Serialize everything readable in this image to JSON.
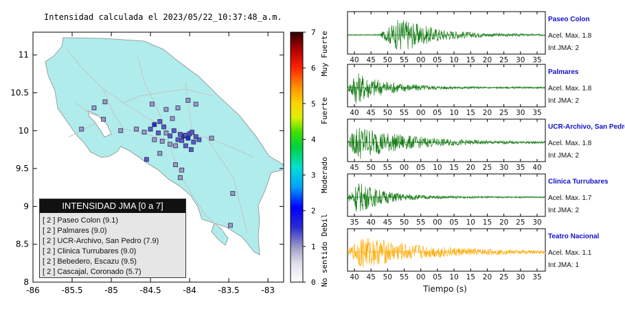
{
  "map": {
    "title": "Intensidad calculada el 2023/05/22_10:37:48_a.m.",
    "x_ticks": [
      "-86",
      "-85.5",
      "-85",
      "-84.5",
      "-84",
      "-83.5",
      "-83"
    ],
    "y_ticks": [
      "11",
      "10.5",
      "10",
      "9.5",
      "9",
      "8.5",
      "8"
    ]
  },
  "colorbar": {
    "ticks": [
      "7",
      "6",
      "5",
      "4",
      "3",
      "2",
      "1",
      "0"
    ],
    "category_labels": [
      "Muy Fuerte",
      "Fuerte",
      "Moderado",
      "Debil",
      "No sentido"
    ]
  },
  "legend": {
    "header": "INTENSIDAD JMA [0 a 7]",
    "items": [
      "[ 2 ]  Paseo Colon (9.1)",
      "[ 2 ]  Palmares (9.0)",
      "[ 2 ]  UCR-Archivo, San Pedro (7.9)",
      "[ 2 ]  Clinica Turrubares (9.0)",
      "[ 2 ]  Bebedero, Escazu (9.5)",
      "[ 2 ]  Cascajal, Coronado (5.7)"
    ]
  },
  "colors": {
    "land": "#b0ecec",
    "station_stroke": "#2a2a4a",
    "trace_green": "#137a13",
    "trace_orange": "#ffaa00",
    "station_title": "#1010cc"
  },
  "traces": [
    {
      "name": "Paseo Colon",
      "accel_label": "Acel. Max. 1.8",
      "int_label": "Int JMA: 2",
      "ticks": [
        "40",
        "45",
        "50",
        "55",
        "00",
        "05",
        "10",
        "15",
        "20",
        "25",
        "30",
        "35"
      ],
      "color": "trace_green",
      "onset": 0.16,
      "peak": 0.26,
      "amp": 0.95,
      "decay": 6
    },
    {
      "name": "Palmares",
      "accel_label": "Acel. Max. 1.8",
      "int_label": "Int JMA: 2",
      "ticks": [
        "40",
        "45",
        "50",
        "55",
        "00",
        "05",
        "10",
        "15",
        "20",
        "25",
        "30",
        "35"
      ],
      "color": "trace_green",
      "onset": 0.0,
      "peak": 0.02,
      "amp": 0.9,
      "decay": 6
    },
    {
      "name": "UCR-Archivo, San Pedro",
      "accel_label": "Acel. Max. 1.8",
      "int_label": "Int JMA: 2",
      "ticks": [
        "45",
        "50",
        "55",
        "00",
        "05",
        "10",
        "15",
        "20",
        "25",
        "30",
        "35",
        "40"
      ],
      "color": "trace_green",
      "onset": 0.0,
      "peak": 0.03,
      "amp": 0.95,
      "decay": 4
    },
    {
      "name": "Clinica Turrubares",
      "accel_label": "Acel. Max. 1.7",
      "int_label": "Int JMA: 2",
      "ticks": [
        "35",
        "40",
        "45",
        "50",
        "55",
        "00",
        "05",
        "10",
        "15",
        "20",
        "25",
        "30"
      ],
      "color": "trace_green",
      "onset": 0.0,
      "peak": 0.03,
      "amp": 0.9,
      "decay": 7
    },
    {
      "name": "Teatro Nacional",
      "accel_label": "Acel. Max. 1.1",
      "int_label": "Int JMA: 1",
      "ticks": [
        "40",
        "45",
        "50",
        "55",
        "00",
        "05",
        "10",
        "15",
        "20",
        "25",
        "30",
        "35"
      ],
      "color": "trace_orange",
      "onset": 0.0,
      "peak": 0.05,
      "amp": 0.85,
      "decay": 3
    }
  ],
  "x_axis_label": "Tiempo (s)",
  "chart_data": [
    {
      "type": "scatter",
      "title": "Intensidad calculada el 2023/05/22_10:37:48_a.m.",
      "xlim": [
        -86,
        -82.8
      ],
      "ylim": [
        8,
        11.3
      ],
      "x_ticks": [
        -86,
        -85.5,
        -85,
        -84.5,
        -84,
        -83.5,
        -83
      ],
      "y_ticks": [
        8,
        8.5,
        9,
        9.5,
        10,
        10.5,
        11
      ],
      "colorbar": {
        "min": 0,
        "max": 7,
        "labels": [
          "No sentido",
          "Debil",
          "Moderado",
          "Fuerte",
          "Muy Fuerte"
        ]
      },
      "stations": [
        {
          "x": -84.08,
          "y": 9.93,
          "v": 2.0
        },
        {
          "x": -84.05,
          "y": 9.94,
          "v": 1.9
        },
        {
          "x": -84.12,
          "y": 9.95,
          "v": 1.8
        },
        {
          "x": -84.02,
          "y": 9.9,
          "v": 2.0
        },
        {
          "x": -84.0,
          "y": 9.96,
          "v": 1.9
        },
        {
          "x": -84.15,
          "y": 9.88,
          "v": 1.7
        },
        {
          "x": -84.1,
          "y": 9.87,
          "v": 1.8
        },
        {
          "x": -83.97,
          "y": 9.98,
          "v": 1.9
        },
        {
          "x": -83.95,
          "y": 9.85,
          "v": 1.8
        },
        {
          "x": -83.92,
          "y": 9.92,
          "v": 1.6
        },
        {
          "x": -84.2,
          "y": 10.0,
          "v": 1.5
        },
        {
          "x": -84.25,
          "y": 9.93,
          "v": 1.6
        },
        {
          "x": -84.3,
          "y": 9.97,
          "v": 1.4
        },
        {
          "x": -84.33,
          "y": 10.05,
          "v": 1.5
        },
        {
          "x": -84.45,
          "y": 10.08,
          "v": 2.2
        },
        {
          "x": -84.4,
          "y": 9.97,
          "v": 1.9
        },
        {
          "x": -84.5,
          "y": 10.02,
          "v": 1.8
        },
        {
          "x": -84.38,
          "y": 10.12,
          "v": 1.5
        },
        {
          "x": -84.22,
          "y": 10.16,
          "v": 1.3
        },
        {
          "x": -84.3,
          "y": 10.28,
          "v": 1.2
        },
        {
          "x": -84.15,
          "y": 10.3,
          "v": 1.1
        },
        {
          "x": -84.48,
          "y": 10.35,
          "v": 1.0
        },
        {
          "x": -84.02,
          "y": 10.4,
          "v": 1.0
        },
        {
          "x": -83.92,
          "y": 10.35,
          "v": 1.0
        },
        {
          "x": -84.18,
          "y": 9.8,
          "v": 1.4
        },
        {
          "x": -84.05,
          "y": 9.8,
          "v": 1.5
        },
        {
          "x": -83.88,
          "y": 9.88,
          "v": 1.7
        },
        {
          "x": -83.98,
          "y": 9.75,
          "v": 1.5
        },
        {
          "x": -84.25,
          "y": 9.82,
          "v": 1.3
        },
        {
          "x": -84.35,
          "y": 9.86,
          "v": 1.2
        },
        {
          "x": -84.45,
          "y": 9.88,
          "v": 1.1
        },
        {
          "x": -84.58,
          "y": 9.98,
          "v": 1.1
        },
        {
          "x": -84.68,
          "y": 10.02,
          "v": 1.0
        },
        {
          "x": -84.38,
          "y": 9.7,
          "v": 1.0
        },
        {
          "x": -84.55,
          "y": 9.62,
          "v": 1.9
        },
        {
          "x": -84.18,
          "y": 9.55,
          "v": 1.0
        },
        {
          "x": -84.1,
          "y": 9.48,
          "v": 1.0
        },
        {
          "x": -83.72,
          "y": 9.9,
          "v": 1.0
        },
        {
          "x": -84.12,
          "y": 9.38,
          "v": 1.0
        },
        {
          "x": -85.08,
          "y": 10.38,
          "v": 1.0
        },
        {
          "x": -85.22,
          "y": 10.3,
          "v": 1.0
        },
        {
          "x": -85.1,
          "y": 10.15,
          "v": 1.0
        },
        {
          "x": -85.38,
          "y": 10.02,
          "v": 1.0
        },
        {
          "x": -84.88,
          "y": 10.0,
          "v": 1.0
        },
        {
          "x": -83.48,
          "y": 8.75,
          "v": 1.0
        },
        {
          "x": -83.45,
          "y": 9.17,
          "v": 1.0
        }
      ]
    },
    {
      "type": "line",
      "panels": [
        {
          "name": "Paseo Colon",
          "x_ticks": [
            "40",
            "45",
            "50",
            "55",
            "00",
            "05",
            "10",
            "15",
            "20",
            "25",
            "30",
            "35"
          ],
          "accel_max": 1.8,
          "int_jma": 2
        },
        {
          "name": "Palmares",
          "x_ticks": [
            "40",
            "45",
            "50",
            "55",
            "00",
            "05",
            "10",
            "15",
            "20",
            "25",
            "30",
            "35"
          ],
          "accel_max": 1.8,
          "int_jma": 2
        },
        {
          "name": "UCR-Archivo, San Pedro",
          "x_ticks": [
            "45",
            "50",
            "55",
            "00",
            "05",
            "10",
            "15",
            "20",
            "25",
            "30",
            "35",
            "40"
          ],
          "accel_max": 1.8,
          "int_jma": 2
        },
        {
          "name": "Clinica Turrubares",
          "x_ticks": [
            "35",
            "40",
            "45",
            "50",
            "55",
            "00",
            "05",
            "10",
            "15",
            "20",
            "25",
            "30"
          ],
          "accel_max": 1.7,
          "int_jma": 2
        },
        {
          "name": "Teatro Nacional",
          "x_ticks": [
            "40",
            "45",
            "50",
            "55",
            "00",
            "05",
            "10",
            "15",
            "20",
            "25",
            "30",
            "35"
          ],
          "accel_max": 1.1,
          "int_jma": 1
        }
      ],
      "xlabel": "Tiempo (s)"
    }
  ]
}
